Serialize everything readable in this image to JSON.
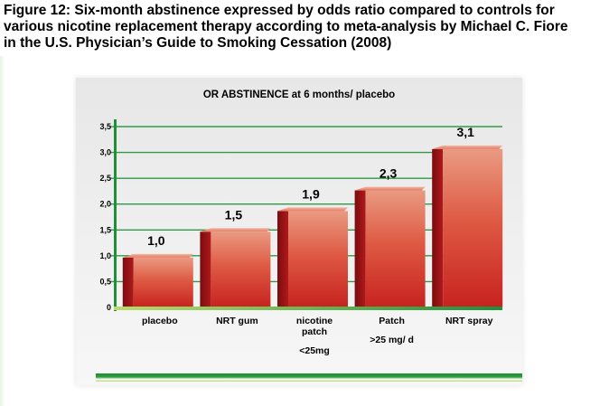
{
  "figure": {
    "title_lines": [
      "Figure 12: Six-month abstinence expressed by odds ratio compared to controls for",
      "various nicotine replacement therapy according to meta-analysis by Michael C. Fiore",
      "in the U.S. Physician’s Guide to Smoking Cessation (2008)"
    ]
  },
  "chart_data": {
    "type": "bar",
    "title": "OR ABSTINENCE at 6 months/ placebo",
    "xlabel": "",
    "ylabel": "",
    "ylim": [
      0,
      3.5
    ],
    "yticks": [
      "0",
      "0,5",
      "1,0",
      "1,5",
      "2,0",
      "2,5",
      "3,0",
      "3,5"
    ],
    "ytick_values": [
      0,
      0.5,
      1.0,
      1.5,
      2.0,
      2.5,
      3.0,
      3.5
    ],
    "grid": true,
    "categories": [
      [
        "placebo"
      ],
      [
        "NRT gum"
      ],
      [
        "nicotine",
        "patch",
        "",
        "<25mg"
      ],
      [
        "Patch",
        "",
        ">25 mg/ d"
      ],
      [
        "NRT spray"
      ]
    ],
    "values": [
      1.0,
      1.5,
      1.9,
      2.3,
      3.1
    ],
    "value_labels": [
      "1,0",
      "1,5",
      "1,9",
      "2,3",
      "3,1"
    ],
    "colors": {
      "bar_light": "#e9907a",
      "bar_mid": "#d6382b",
      "bar_dark": "#b3161b",
      "bar_side": "#8c0f12",
      "axis": "#1f8f3a",
      "grid": "#2e9a46",
      "base_band_top": "#1e8c36",
      "base_band_bottom": "#b8d96a"
    }
  }
}
